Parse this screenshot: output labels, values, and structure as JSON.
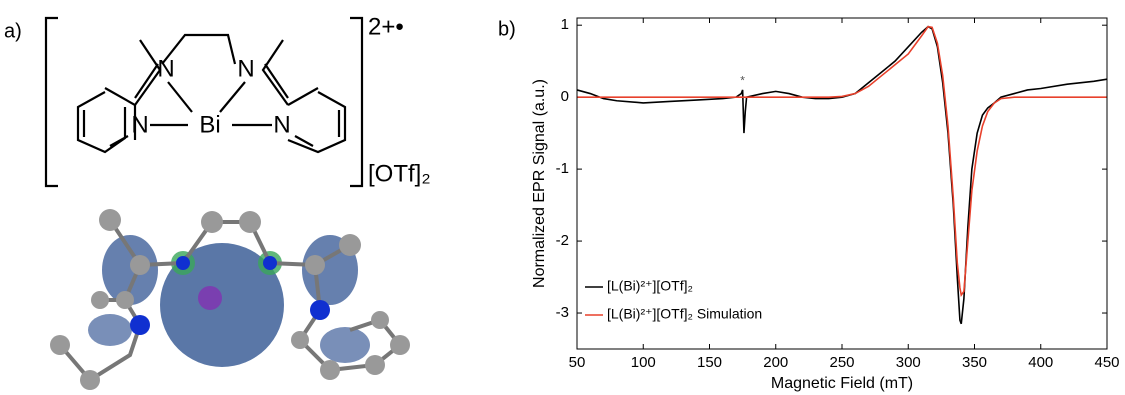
{
  "panel_labels": [
    "a)",
    "b)"
  ],
  "structure": {
    "atoms": [
      "N",
      "N",
      "N",
      "Bi",
      "N"
    ],
    "charge": "2+•",
    "counterion": "[OTf]₂"
  },
  "chart_data": {
    "type": "line",
    "xlabel": "Magnetic Field (mT)",
    "ylabel": "Normalized EPR Signal (a.u.)",
    "x": [
      50,
      60,
      70,
      80,
      100,
      120,
      140,
      160,
      170,
      174,
      175,
      176,
      177,
      178,
      190,
      200,
      210,
      220,
      230,
      240,
      250,
      260,
      270,
      280,
      290,
      300,
      310,
      315,
      318,
      322,
      326,
      330,
      334,
      337,
      339,
      340,
      342,
      345,
      348,
      352,
      356,
      360,
      365,
      370,
      380,
      390,
      400,
      420,
      440,
      450
    ],
    "series": [
      {
        "name": "[L(Bi)²⁺][OTf]₂",
        "color": "#000000",
        "values": [
          0.1,
          0.05,
          -0.02,
          -0.05,
          -0.08,
          -0.06,
          -0.04,
          -0.02,
          0.0,
          0.05,
          0.1,
          -0.5,
          -0.2,
          0.0,
          0.05,
          0.08,
          0.05,
          0.0,
          -0.02,
          -0.02,
          0.0,
          0.05,
          0.2,
          0.35,
          0.5,
          0.7,
          0.9,
          0.98,
          0.95,
          0.7,
          0.2,
          -0.5,
          -1.5,
          -2.5,
          -3.1,
          -3.15,
          -2.8,
          -1.8,
          -1.0,
          -0.5,
          -0.25,
          -0.15,
          -0.08,
          0.0,
          0.05,
          0.1,
          0.12,
          0.18,
          0.22,
          0.25
        ]
      },
      {
        "name": "[L(Bi)²⁺][OTf]₂ Simulation",
        "color": "#e8412c",
        "values": [
          0,
          0,
          0,
          0,
          0,
          0,
          0,
          0,
          0,
          0,
          0,
          0,
          0,
          0,
          0,
          0,
          0,
          0,
          0,
          0,
          0.01,
          0.05,
          0.15,
          0.3,
          0.45,
          0.6,
          0.85,
          0.98,
          0.97,
          0.75,
          0.3,
          -0.4,
          -1.4,
          -2.3,
          -2.65,
          -2.75,
          -2.7,
          -2.0,
          -1.3,
          -0.75,
          -0.4,
          -0.2,
          -0.08,
          -0.02,
          0,
          0,
          0,
          0,
          0,
          0
        ]
      }
    ],
    "annotations": [
      {
        "text": "*",
        "x": 175,
        "y": 0.22
      }
    ],
    "xlim": [
      50,
      450
    ],
    "xticks": [
      50,
      100,
      150,
      200,
      250,
      300,
      350,
      400,
      450
    ],
    "ylim": [
      -3.5,
      1.1
    ],
    "yticks": [
      -3,
      -2,
      -1,
      0,
      1
    ],
    "legend": "lower left"
  }
}
